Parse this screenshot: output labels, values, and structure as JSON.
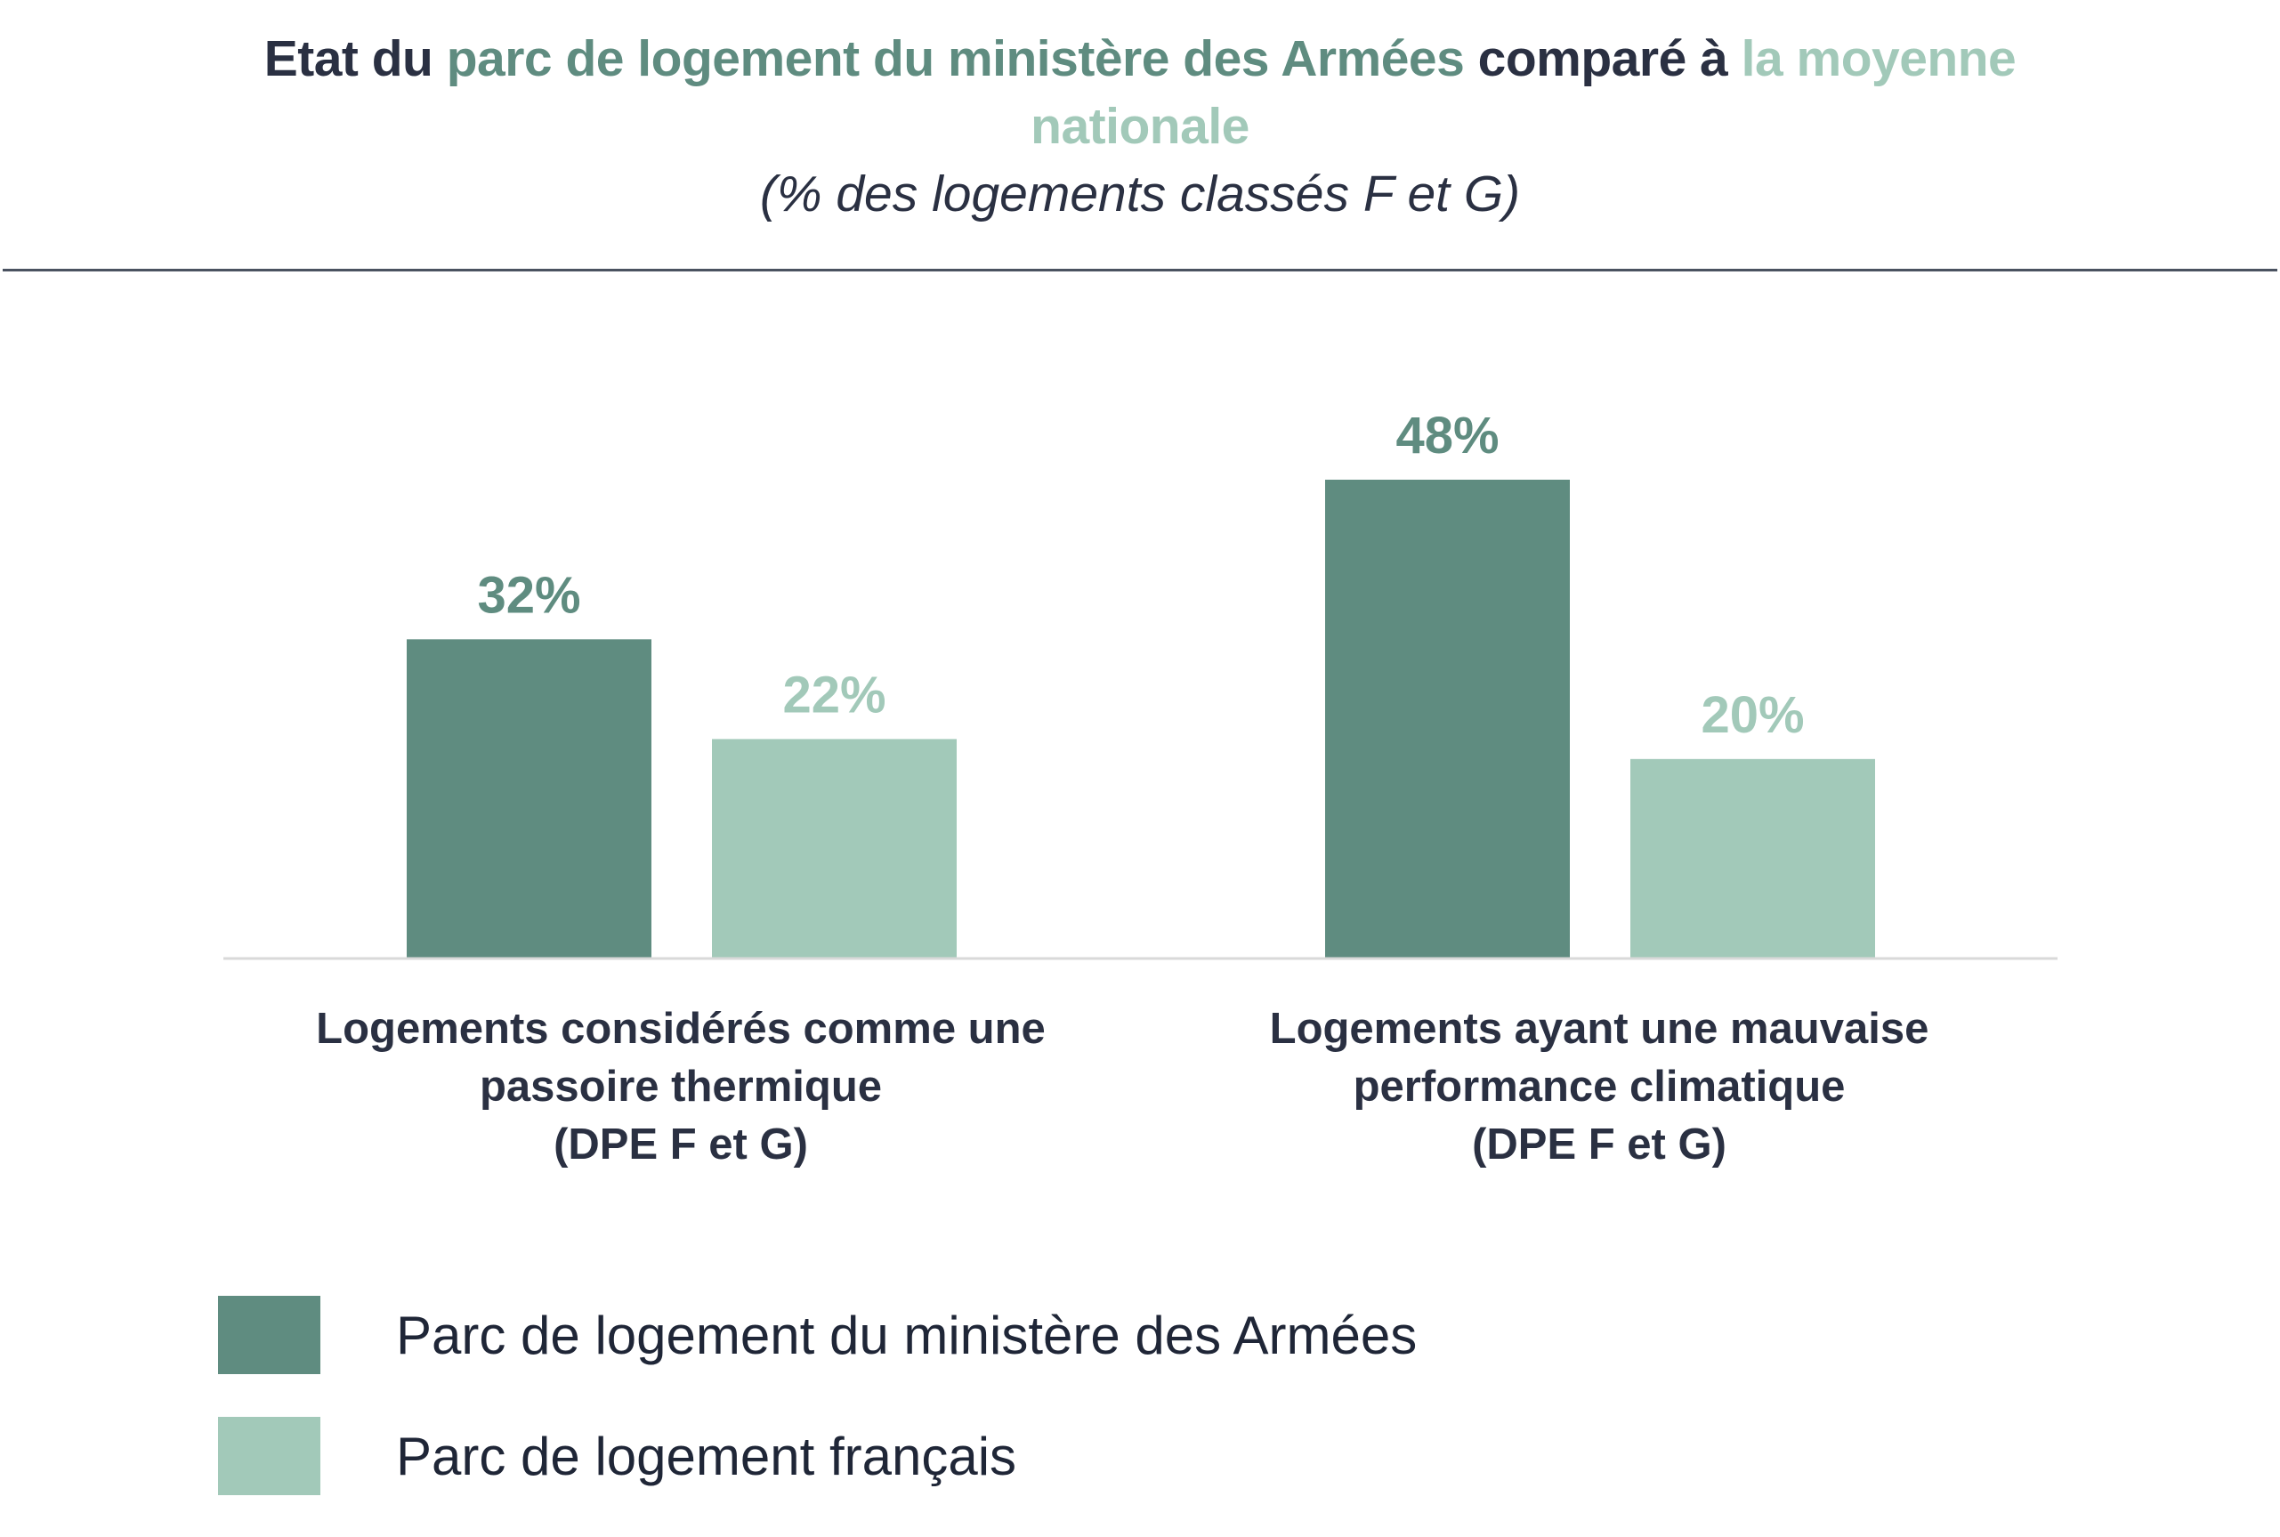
{
  "title": {
    "part1": "Etat du ",
    "part2": "parc de logement du ministère des Armées",
    "part3": " comparé à ",
    "part4": "la moyenne",
    "part5": "nationale",
    "subtitle": "(% des logements classés F et G)"
  },
  "colors": {
    "armees": "#5f8c80",
    "national": "#a2c9b9",
    "text_dark": "#2a3042",
    "baseline": "#d9d9d9"
  },
  "chart_data": {
    "type": "bar",
    "categories": [
      [
        "Logements considérés comme une",
        "passoire thermique",
        "(DPE F et G)"
      ],
      [
        "Logements ayant une mauvaise",
        "performance climatique",
        "(DPE F et G)"
      ]
    ],
    "series": [
      {
        "name": "Parc de logement du ministère des Armées",
        "values": [
          32,
          48
        ],
        "labels": [
          "32%",
          "48%"
        ],
        "color": "#5f8c80"
      },
      {
        "name": "Parc de logement français",
        "values": [
          22,
          20
        ],
        "labels": [
          "22%",
          "20%"
        ],
        "color": "#a2c9b9"
      }
    ],
    "unit": "%",
    "ylim": [
      0,
      48
    ],
    "grid": false,
    "legend_position": "bottom-left"
  },
  "legend": [
    {
      "label": "Parc de logement du ministère des Armées",
      "color": "#5f8c80"
    },
    {
      "label": "Parc de logement français",
      "color": "#a2c9b9"
    }
  ]
}
